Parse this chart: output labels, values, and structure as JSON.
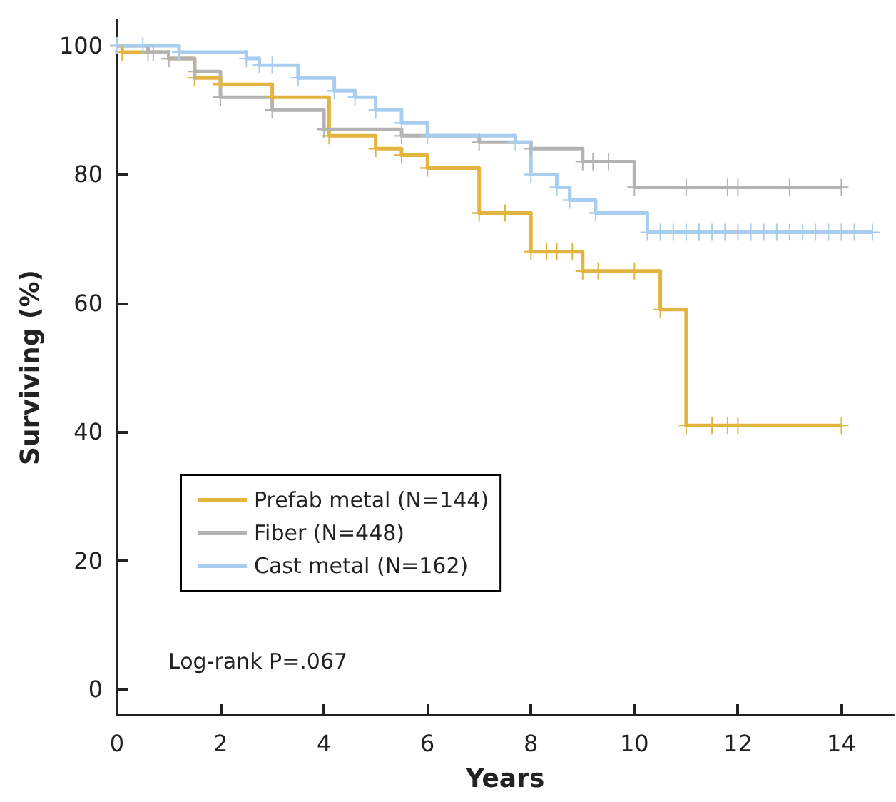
{
  "chart_data": {
    "type": "step",
    "xlabel": "Years",
    "ylabel": "Surviving (%)",
    "xlim": [
      0,
      15
    ],
    "xticks": [
      0,
      2,
      4,
      6,
      8,
      10,
      12,
      14
    ],
    "ylim": [
      -4,
      104
    ],
    "yticks": [
      0,
      20,
      40,
      60,
      80,
      100
    ],
    "grid": false,
    "legend": "bottom left",
    "marker": "cross",
    "line_style": "solid",
    "annotations": [
      "Log-rank P=.067"
    ],
    "series": [
      {
        "name": "Prefab metal (N=144)",
        "color": "#e3b53f",
        "x": [
          0,
          0.1,
          1,
          1.5,
          2,
          3,
          4.1,
          5,
          5.5,
          6,
          7,
          7.5,
          8,
          8.3,
          8.5,
          8.8,
          9,
          9.3,
          10,
          10.5,
          11,
          11.5,
          11.8,
          12,
          14
        ],
        "values": [
          100,
          99,
          98,
          95,
          94,
          92,
          86,
          84,
          83,
          81,
          74,
          74,
          68,
          68,
          68,
          68,
          65,
          65,
          65,
          59,
          41,
          41,
          41,
          41,
          41
        ]
      },
      {
        "name": "Fiber (N=448)",
        "color": "#b3b3b3",
        "x": [
          0,
          0.6,
          0.7,
          1,
          1.5,
          2,
          3,
          4,
          5.5,
          7,
          8,
          9,
          9.2,
          9.5,
          10,
          11,
          11.8,
          12,
          13,
          14
        ],
        "values": [
          100,
          99,
          99,
          98,
          96,
          92,
          90,
          87,
          86,
          85,
          84,
          82,
          82,
          82,
          78,
          78,
          78,
          78,
          78,
          78
        ]
      },
      {
        "name": "Cast metal (N=162)",
        "color": "#a8cdee",
        "x": [
          0,
          0.5,
          1.2,
          2.5,
          2.75,
          3,
          3.5,
          4.2,
          4.6,
          5,
          5.5,
          6,
          7.7,
          8,
          8.5,
          8.75,
          9.25,
          10.25,
          10.5,
          10.75,
          11,
          11.25,
          11.5,
          11.75,
          12,
          12.25,
          12.5,
          12.75,
          13,
          13.25,
          13.5,
          13.75,
          14,
          14.25,
          14.6
        ],
        "values": [
          100,
          100,
          99,
          98,
          97,
          97,
          95,
          93,
          92,
          90,
          88,
          86,
          85,
          80,
          78,
          76,
          74,
          71,
          71,
          71,
          71,
          71,
          71,
          71,
          71,
          71,
          71,
          71,
          71,
          71,
          71,
          71,
          71,
          71,
          71
        ]
      }
    ]
  }
}
